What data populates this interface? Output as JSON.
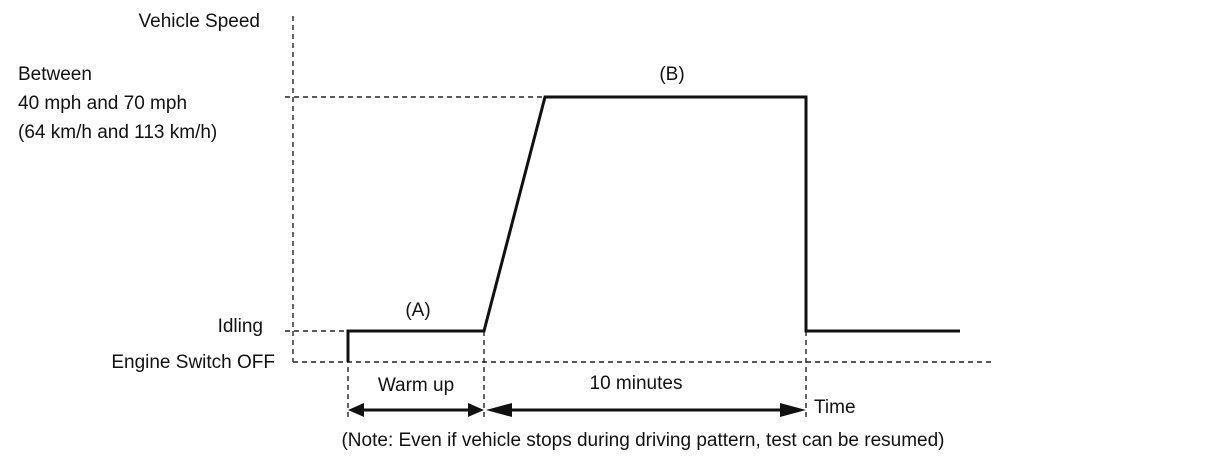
{
  "diagram": {
    "y_axis_label": "Vehicle Speed",
    "x_axis_label": "Time",
    "levels": {
      "high": [
        "Between",
        "40 mph and 70 mph",
        "(64 km/h and 113 km/h)"
      ],
      "idling": "Idling",
      "off": "Engine Switch OFF"
    },
    "segments": {
      "a": "(A)",
      "b": "(B)"
    },
    "intervals": {
      "warm_up": "Warm up",
      "ten_minutes": "10 minutes"
    },
    "note": "(Note: Even if vehicle stops during driving pattern, test can be resumed)"
  }
}
